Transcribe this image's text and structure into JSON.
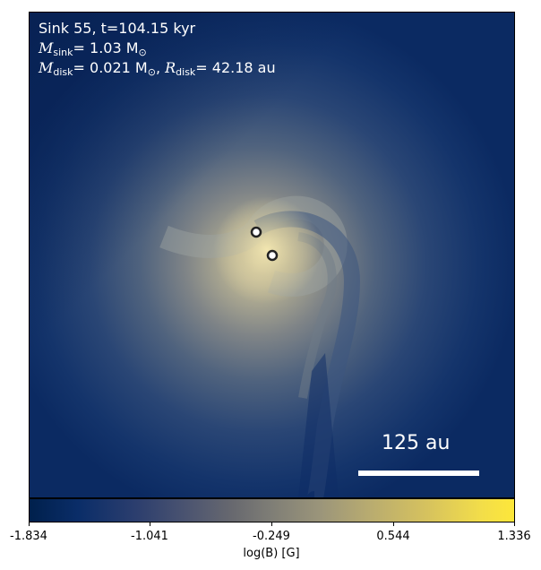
{
  "panel": {
    "title_line": "Sink 55, t=104.15 kyr",
    "sink_mass_symbol": "M",
    "sink_mass_sub": "sink",
    "sink_mass_value": "= 1.03 M",
    "sink_mass_unit_sub": "⊙",
    "disk_mass_symbol": "M",
    "disk_mass_sub": "disk",
    "disk_mass_value": "= 0.021 M",
    "disk_mass_unit_sub": "⊙",
    "disk_radius_symbol": "R",
    "disk_radius_sub": "disk",
    "disk_radius_value": "= 42.18 au",
    "scale_bar_label": "125 au"
  },
  "colorbar": {
    "label": "log(B) [G]",
    "ticks": [
      "-1.834",
      "-1.041",
      "-0.249",
      "0.544",
      "1.336"
    ],
    "colors": {
      "low": "#00204c",
      "mid": "#7f7e76",
      "high": "#fde73a"
    }
  },
  "colors": {
    "background_field": "#0c2a63",
    "disk_core": "#e8dca0",
    "sink_marker_fill": "#ffffff",
    "sink_marker_edge": "#222222"
  }
}
